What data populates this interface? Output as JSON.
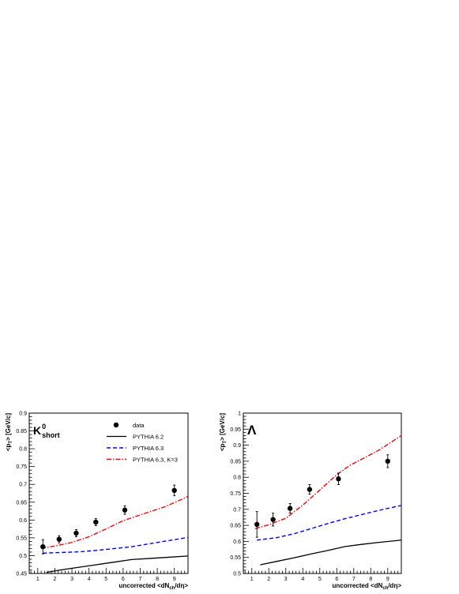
{
  "chart_data": [
    {
      "type": "line",
      "panel_label": "K",
      "panel_label_sup": "0",
      "panel_label_sub": "short",
      "xlabel": "uncorrected <dN",
      "xlabel_sub": "ch",
      "xlabel_tail": "/dη>",
      "ylabel": "<p",
      "ylabel_sub": "T",
      "ylabel_tail": "> [GeV/c]",
      "xlim": [
        0.5,
        9.8
      ],
      "ylim": [
        0.45,
        0.9
      ],
      "xticks": [
        1,
        2,
        3,
        4,
        5,
        6,
        7,
        8,
        9
      ],
      "yticks": [
        0.45,
        0.5,
        0.55,
        0.6,
        0.65,
        0.7,
        0.75,
        0.8,
        0.85,
        0.9
      ],
      "ytick_labels": [
        "0.45",
        "0.5",
        "0.55",
        "0.6",
        "0.65",
        "0.7",
        "0.75",
        "0.8",
        "0.85",
        "0.9"
      ],
      "legend": {
        "placement": "top-center",
        "entries": [
          {
            "label": "data",
            "style": "marker"
          },
          {
            "label": "PYTHIA 6.2",
            "style": "solid"
          },
          {
            "label": "PYTHIA 6.3",
            "style": "dashed"
          },
          {
            "label": "PYTHIA 6.3, K=3",
            "style": "dashdot"
          }
        ]
      },
      "data_points": {
        "x": [
          1.3,
          2.25,
          3.25,
          4.4,
          6.1,
          9.0
        ],
        "y": [
          0.525,
          0.546,
          0.563,
          0.594,
          0.628,
          0.683
        ],
        "err": [
          0.02,
          0.01,
          0.01,
          0.01,
          0.012,
          0.015
        ]
      },
      "series": [
        {
          "name": "PYTHIA 6.2",
          "color": "#000000",
          "style": "solid",
          "x": [
            1.5,
            2.5,
            3.5,
            4.5,
            5.5,
            6.5,
            7.5,
            8.5,
            9.8
          ],
          "y": [
            0.453,
            0.461,
            0.468,
            0.475,
            0.482,
            0.489,
            0.492,
            0.495,
            0.499
          ]
        },
        {
          "name": "PYTHIA 6.3",
          "color": "#0000ff",
          "style": "dashed",
          "x": [
            1.3,
            2.5,
            3.5,
            4.5,
            5.5,
            6.5,
            7.5,
            8.5,
            9.8
          ],
          "y": [
            0.507,
            0.509,
            0.511,
            0.515,
            0.52,
            0.525,
            0.533,
            0.541,
            0.551
          ]
        },
        {
          "name": "PYTHIA 6.3, K=3",
          "color": "#ff0000",
          "style": "dashdot",
          "x": [
            1.2,
            2.0,
            3.0,
            4.0,
            5.0,
            6.0,
            6.8,
            7.5,
            8.5,
            9.8
          ],
          "y": [
            0.52,
            0.527,
            0.537,
            0.553,
            0.575,
            0.598,
            0.611,
            0.622,
            0.638,
            0.666
          ]
        }
      ]
    },
    {
      "type": "line",
      "panel_label": "Λ",
      "xlabel": "uncorrected <dN",
      "xlabel_sub": "ch",
      "xlabel_tail": "/dη>",
      "ylabel": "<p",
      "ylabel_sub": "T",
      "ylabel_tail": "> [GeV/c]",
      "xlim": [
        0.5,
        9.8
      ],
      "ylim": [
        0.5,
        1.0
      ],
      "xticks": [
        1,
        2,
        3,
        4,
        5,
        6,
        7,
        8,
        9
      ],
      "yticks": [
        0.5,
        0.55,
        0.6,
        0.65,
        0.7,
        0.75,
        0.8,
        0.85,
        0.9,
        0.95,
        1.0
      ],
      "ytick_labels": [
        "0.5",
        "0.55",
        "0.6",
        "0.65",
        "0.7",
        "0.75",
        "0.8",
        "0.85",
        "0.9",
        "0.95",
        "1"
      ],
      "data_points": {
        "x": [
          1.3,
          2.25,
          3.25,
          4.4,
          6.1,
          9.0
        ],
        "y": [
          0.653,
          0.668,
          0.703,
          0.762,
          0.795,
          0.85
        ],
        "err": [
          0.04,
          0.02,
          0.015,
          0.015,
          0.018,
          0.02
        ]
      },
      "series": [
        {
          "name": "PYTHIA 6.2",
          "color": "#000000",
          "style": "solid",
          "x": [
            1.5,
            2.5,
            3.5,
            4.5,
            5.5,
            6.5,
            7.5,
            8.5,
            9.8
          ],
          "y": [
            0.527,
            0.538,
            0.549,
            0.561,
            0.572,
            0.584,
            0.591,
            0.597,
            0.604
          ]
        },
        {
          "name": "PYTHIA 6.3",
          "color": "#0000ff",
          "style": "dashed",
          "x": [
            1.3,
            2.5,
            3.5,
            4.5,
            5.5,
            6.5,
            7.5,
            8.5,
            9.8
          ],
          "y": [
            0.604,
            0.612,
            0.624,
            0.64,
            0.656,
            0.671,
            0.684,
            0.697,
            0.712
          ]
        },
        {
          "name": "PYTHIA 6.3, K=3",
          "color": "#ff0000",
          "style": "dashdot",
          "x": [
            1.2,
            2.0,
            3.0,
            4.0,
            5.0,
            6.0,
            6.8,
            7.5,
            8.5,
            9.8
          ],
          "y": [
            0.64,
            0.652,
            0.672,
            0.713,
            0.76,
            0.808,
            0.838,
            0.857,
            0.885,
            0.93
          ]
        }
      ]
    }
  ]
}
